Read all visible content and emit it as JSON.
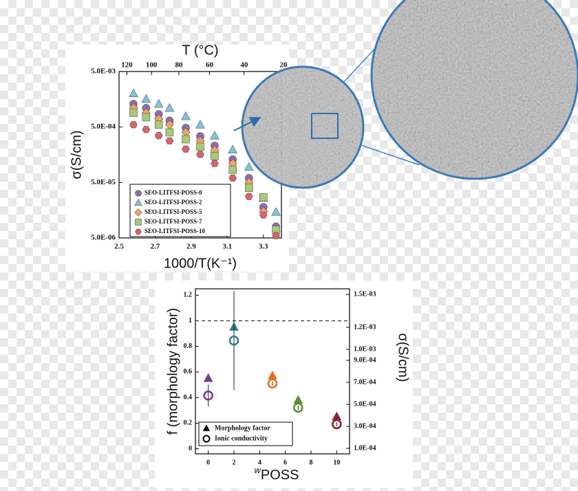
{
  "chart_data": [
    {
      "type": "scatter",
      "xlabel": "1000/T(K⁻¹)",
      "ylabel": "σ(S/cm)",
      "x2label": "T (°C)",
      "log_y": true,
      "xlim": [
        2.5,
        3.4
      ],
      "ylim": [
        5e-06,
        0.005
      ],
      "xticks": [
        2.5,
        2.7,
        2.9,
        3.1,
        3.3
      ],
      "yticks": [
        {
          "value": 5e-06,
          "label": "5.0E-06"
        },
        {
          "value": 5e-05,
          "label": "5.0E-05"
        },
        {
          "value": 0.0005,
          "label": "5.0E-04"
        },
        {
          "value": 0.005,
          "label": "5.0E-03"
        }
      ],
      "x2ticks": [
        120,
        100,
        80,
        60,
        40,
        20
      ],
      "x": [
        2.58,
        2.65,
        2.72,
        2.78,
        2.87,
        2.95,
        3.03,
        3.13,
        3.22,
        3.3,
        3.37
      ],
      "series": [
        {
          "name": "SEO-LITFSI-POSS-0",
          "color": "#8e6bb5",
          "marker": "circle",
          "values": [
            0.0013,
            0.0011,
            0.00085,
            0.00065,
            0.00048,
            0.00034,
            0.00023,
            0.00013,
            6e-05,
            1.8e-05,
            8e-06
          ]
        },
        {
          "name": "SEO-LITFSI-POSS-2",
          "color": "#7fc4d9",
          "marker": "triangle",
          "values": [
            0.002,
            0.00158,
            0.00129,
            0.00109,
            0.00077,
            0.000545,
            0.000344,
            0.000193,
            9.4e-05,
            2.6e-05,
            1.45e-05
          ]
        },
        {
          "name": "SEO-LITFSI-POSS-5",
          "color": "#f5a25b",
          "marker": "diamond",
          "values": [
            0.0011,
            0.0009,
            0.0007,
            0.00055,
            0.0004,
            0.00028,
            0.00019,
            0.00011,
            5e-05,
            1.5e-05,
            6.5e-06
          ]
        },
        {
          "name": "SEO-LITFSI-POSS-7",
          "color": "#a6c97a",
          "marker": "square",
          "values": [
            0.0009,
            0.00075,
            0.00055,
            0.0004,
            0.0003,
            0.00022,
            0.00015,
            8.5e-05,
            4e-05,
            2.7e-05,
            7e-06
          ]
        },
        {
          "name": "SEO-LITFSI-POSS-10",
          "color": "#d9636a",
          "marker": "hexagon",
          "values": [
            0.00055,
            0.00045,
            0.00035,
            0.00028,
            0.0002,
            0.00016,
            0.00011,
            6e-05,
            2.8e-05,
            1.3e-05,
            5.5e-06
          ]
        }
      ]
    },
    {
      "type": "scatter",
      "xlabel_prefix": "w",
      "xlabel": "POSS",
      "ylabel": "f (morphology factor)",
      "y2label": "σ(S/cm)",
      "xlim": [
        -1,
        11
      ],
      "ylim": [
        -0.04,
        1.25
      ],
      "y2lim": [
        5e-05,
        0.00155
      ],
      "xticks": [
        0,
        2,
        4,
        6,
        8,
        10
      ],
      "yticks": [
        0,
        0.2,
        0.4,
        0.6,
        0.8,
        1,
        1.2
      ],
      "y2ticks": [
        {
          "value": 0.0001,
          "label": "1.0E-04"
        },
        {
          "value": 0.0003,
          "label": "3.0E-04"
        },
        {
          "value": 0.0005,
          "label": "5.0E-04"
        },
        {
          "value": 0.0007,
          "label": "7.0E-04"
        },
        {
          "value": 0.0009,
          "label": "9.0E-04"
        },
        {
          "value": 0.001,
          "label": "1.0E-03"
        },
        {
          "value": 0.0012,
          "label": "1.2E-03"
        },
        {
          "value": 0.0015,
          "label": "1.5E-03"
        }
      ],
      "reference_line": 1,
      "x": [
        0,
        2,
        5,
        7,
        10
      ],
      "point_colors": [
        "#6a3f9c",
        "#2f7f93",
        "#e8711f",
        "#5e8f2e",
        "#8e2230"
      ],
      "series": [
        {
          "name": "Morphology factor",
          "marker": "triangle",
          "values": [
            0.55,
            0.95,
            0.57,
            0.38,
            0.25
          ]
        },
        {
          "name": "Ionic conductivity",
          "marker": "open-circle",
          "axis": "y2",
          "values": [
            0.00058,
            0.00108,
            0.00069,
            0.00047,
            0.00032
          ],
          "errors": [
            0.0001,
            0.00045,
            2e-05,
            2e-05,
            2e-05
          ]
        }
      ]
    }
  ]
}
